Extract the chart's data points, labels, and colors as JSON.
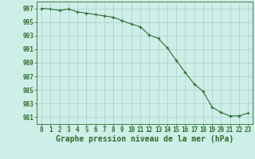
{
  "x": [
    0,
    1,
    2,
    3,
    4,
    5,
    6,
    7,
    8,
    9,
    10,
    11,
    12,
    13,
    14,
    15,
    16,
    17,
    18,
    19,
    20,
    21,
    22,
    23
  ],
  "y": [
    997.0,
    996.9,
    996.7,
    996.9,
    996.5,
    996.3,
    996.1,
    995.9,
    995.7,
    995.2,
    994.7,
    994.3,
    993.1,
    992.6,
    991.2,
    989.4,
    987.6,
    985.9,
    984.8,
    982.5,
    981.7,
    981.2,
    981.2,
    981.6
  ],
  "line_color": "#2d6e2d",
  "marker": "+",
  "marker_size": 3.5,
  "bg_color": "#ceeee8",
  "grid_color": "#aacccc",
  "axis_color": "#2d6e2d",
  "xlabel": "Graphe pression niveau de la mer (hPa)",
  "xlim": [
    -0.5,
    23.5
  ],
  "ylim": [
    980.0,
    998.0
  ],
  "yticks": [
    981,
    983,
    985,
    987,
    989,
    991,
    993,
    995,
    997
  ],
  "xticks": [
    0,
    1,
    2,
    3,
    4,
    5,
    6,
    7,
    8,
    9,
    10,
    11,
    12,
    13,
    14,
    15,
    16,
    17,
    18,
    19,
    20,
    21,
    22,
    23
  ],
  "tick_fontsize": 5.5,
  "xlabel_fontsize": 7.0,
  "linewidth": 0.8,
  "marker_linewidth": 0.8
}
